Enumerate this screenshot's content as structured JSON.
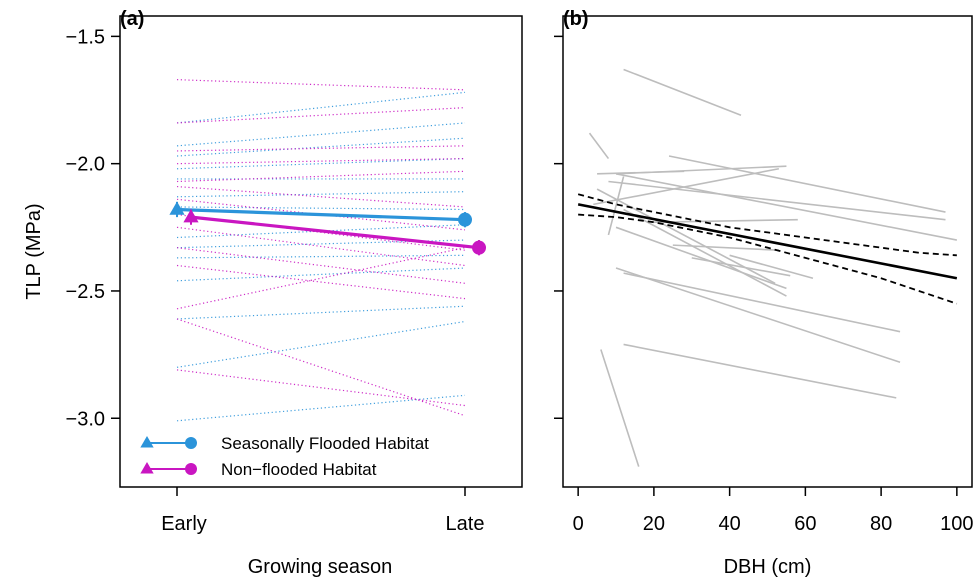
{
  "chart_data": [
    {
      "panel": "(a)",
      "type": "line",
      "xlabel": "Growing season",
      "ylabel": "TLP (MPa)",
      "categories": [
        "Early",
        "Late"
      ],
      "yticks": [
        "−1.5",
        "−2.0",
        "−2.5",
        "−3.0"
      ],
      "ylim": [
        -3.27,
        -1.42
      ],
      "legend": {
        "position": "bottom-left"
      },
      "series": [
        {
          "name": "Seasonally Flooded Habitat",
          "color": "#2B94DA",
          "values": [
            -2.18,
            -2.22
          ],
          "error": [
            0.03,
            0.03
          ],
          "markers": [
            "triangle",
            "circle"
          ]
        },
        {
          "name": "Non−flooded Habitat",
          "color": "#C916C1",
          "values": [
            -2.21,
            -2.33
          ],
          "error": [
            0.03,
            0.03
          ],
          "markers": [
            "triangle",
            "circle"
          ]
        }
      ],
      "individual_lines": {
        "style": "dotted",
        "flooded": [
          [
            -1.84,
            -1.72
          ],
          [
            -1.93,
            -1.84
          ],
          [
            -1.97,
            -1.9
          ],
          [
            -2.02,
            -1.98
          ],
          [
            -2.06,
            -2.06
          ],
          [
            -2.13,
            -2.11
          ],
          [
            -2.17,
            -2.18
          ],
          [
            -2.29,
            -2.24
          ],
          [
            -2.33,
            -2.3
          ],
          [
            -2.37,
            -2.36
          ],
          [
            -2.46,
            -2.41
          ],
          [
            -2.61,
            -2.56
          ],
          [
            -2.8,
            -2.62
          ],
          [
            -3.01,
            -2.91
          ]
        ],
        "nonflooded": [
          [
            -1.67,
            -1.71
          ],
          [
            -1.84,
            -1.78
          ],
          [
            -1.95,
            -1.93
          ],
          [
            -2.0,
            -1.98
          ],
          [
            -2.07,
            -2.03
          ],
          [
            -2.09,
            -2.17
          ],
          [
            -2.14,
            -2.26
          ],
          [
            -2.2,
            -2.34
          ],
          [
            -2.25,
            -2.4
          ],
          [
            -2.33,
            -2.47
          ],
          [
            -2.4,
            -2.53
          ],
          [
            -2.57,
            -2.33
          ],
          [
            -2.81,
            -2.95
          ],
          [
            -2.61,
            -2.99
          ]
        ]
      }
    },
    {
      "panel": "(b)",
      "type": "line",
      "xlabel": "DBH (cm)",
      "ylabel": "",
      "xticks": [
        "0",
        "20",
        "40",
        "60",
        "80",
        "100"
      ],
      "xlim": [
        -4,
        104
      ],
      "ylim": [
        -3.27,
        -1.42
      ],
      "fit": {
        "color": "#000000",
        "style": "solid",
        "x": [
          0,
          100
        ],
        "y": [
          -2.16,
          -2.45
        ]
      },
      "ci_upper": {
        "style": "dashed",
        "x": [
          0,
          10,
          20,
          30,
          40,
          50,
          60,
          70,
          80,
          90,
          100
        ],
        "y": [
          -2.12,
          -2.16,
          -2.19,
          -2.22,
          -2.25,
          -2.27,
          -2.29,
          -2.31,
          -2.33,
          -2.35,
          -2.36
        ]
      },
      "ci_lower": {
        "style": "dashed",
        "x": [
          0,
          10,
          20,
          30,
          40,
          50,
          60,
          70,
          80,
          90,
          100
        ],
        "y": [
          -2.2,
          -2.21,
          -2.23,
          -2.26,
          -2.29,
          -2.33,
          -2.37,
          -2.41,
          -2.45,
          -2.5,
          -2.55
        ]
      },
      "individual_lines": {
        "color": "#BDBDBD",
        "segments": [
          [
            12,
            -1.63,
            43,
            -1.81
          ],
          [
            3,
            -1.88,
            8,
            -1.98
          ],
          [
            5,
            -2.04,
            28,
            -2.03
          ],
          [
            10,
            -2.04,
            55,
            -2.01
          ],
          [
            24,
            -1.97,
            97,
            -2.19
          ],
          [
            8,
            -2.07,
            97,
            -2.22
          ],
          [
            10,
            -2.04,
            100,
            -2.3
          ],
          [
            4,
            -2.16,
            53,
            -2.02
          ],
          [
            12,
            -2.05,
            8,
            -2.28
          ],
          [
            20,
            -2.23,
            58,
            -2.22
          ],
          [
            5,
            -2.1,
            52,
            -2.47
          ],
          [
            10,
            -2.25,
            55,
            -2.49
          ],
          [
            12,
            -2.18,
            55,
            -2.52
          ],
          [
            25,
            -2.32,
            53,
            -2.34
          ],
          [
            30,
            -2.37,
            56,
            -2.44
          ],
          [
            40,
            -2.36,
            62,
            -2.45
          ],
          [
            12,
            -2.43,
            85,
            -2.66
          ],
          [
            10,
            -2.41,
            85,
            -2.78
          ],
          [
            6,
            -2.73,
            16,
            -3.19
          ],
          [
            12,
            -2.71,
            84,
            -2.92
          ]
        ]
      }
    }
  ]
}
